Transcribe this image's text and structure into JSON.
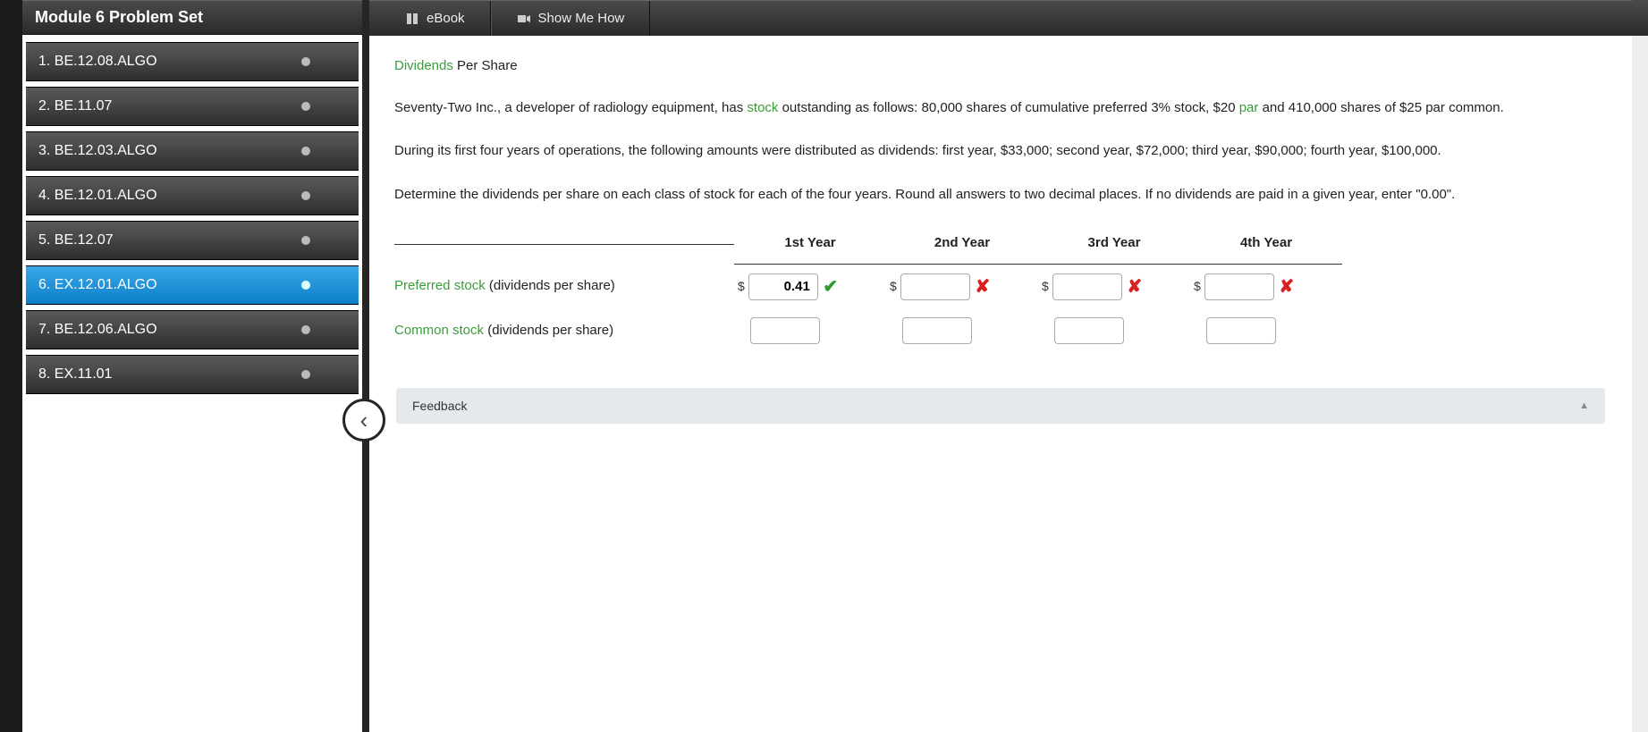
{
  "sidebar": {
    "title": "Module 6 Problem Set",
    "items": [
      {
        "label": "1. BE.12.08.ALGO",
        "active": false
      },
      {
        "label": "2. BE.11.07",
        "active": false
      },
      {
        "label": "3. BE.12.03.ALGO",
        "active": false
      },
      {
        "label": "4. BE.12.01.ALGO",
        "active": false
      },
      {
        "label": "5. BE.12.07",
        "active": false
      },
      {
        "label": "6. EX.12.01.ALGO",
        "active": true
      },
      {
        "label": "7. BE.12.06.ALGO",
        "active": false
      },
      {
        "label": "8. EX.11.01",
        "active": false
      }
    ]
  },
  "toolbar": {
    "ebook": "eBook",
    "showme": "Show Me How"
  },
  "problem": {
    "title_green": "Dividends",
    "title_rest": " Per Share",
    "p1_a": "Seventy-Two Inc., a developer of radiology equipment, has ",
    "p1_link1": "stock",
    "p1_b": " outstanding as follows: 80,000 shares of cumulative preferred 3% stock, $20 ",
    "p1_link2": "par",
    "p1_c": " and 410,000 shares of $25 par common.",
    "p2": "During its first four years of operations, the following amounts were distributed as dividends: first year, $33,000; second year, $72,000; third year, $90,000; fourth year, $100,000.",
    "p3": "Determine the dividends per share on each class of stock for each of the four years. Round all answers to two decimal places. If no dividends are paid in a given year, enter \"0.00\"."
  },
  "table": {
    "headers": [
      "1st Year",
      "2nd Year",
      "3rd Year",
      "4th Year"
    ],
    "rows": [
      {
        "label_link": "Preferred stock",
        "label_rest": " (dividends per share)",
        "cells": [
          {
            "dollar": true,
            "value": "0.41",
            "mark": "ok"
          },
          {
            "dollar": true,
            "value": "",
            "mark": "bad"
          },
          {
            "dollar": true,
            "value": "",
            "mark": "bad"
          },
          {
            "dollar": true,
            "value": "",
            "mark": "bad"
          }
        ]
      },
      {
        "label_link": "Common stock",
        "label_rest": " (dividends per share)",
        "cells": [
          {
            "dollar": false,
            "value": "",
            "mark": ""
          },
          {
            "dollar": false,
            "value": "",
            "mark": ""
          },
          {
            "dollar": false,
            "value": "",
            "mark": ""
          },
          {
            "dollar": false,
            "value": "",
            "mark": ""
          }
        ]
      }
    ]
  },
  "feedback": {
    "label": "Feedback"
  },
  "colors": {
    "link_green": "#3b9c3b",
    "correct": "#2e9c2e",
    "wrong": "#d82020",
    "active_tab": "#0c7fc9"
  }
}
